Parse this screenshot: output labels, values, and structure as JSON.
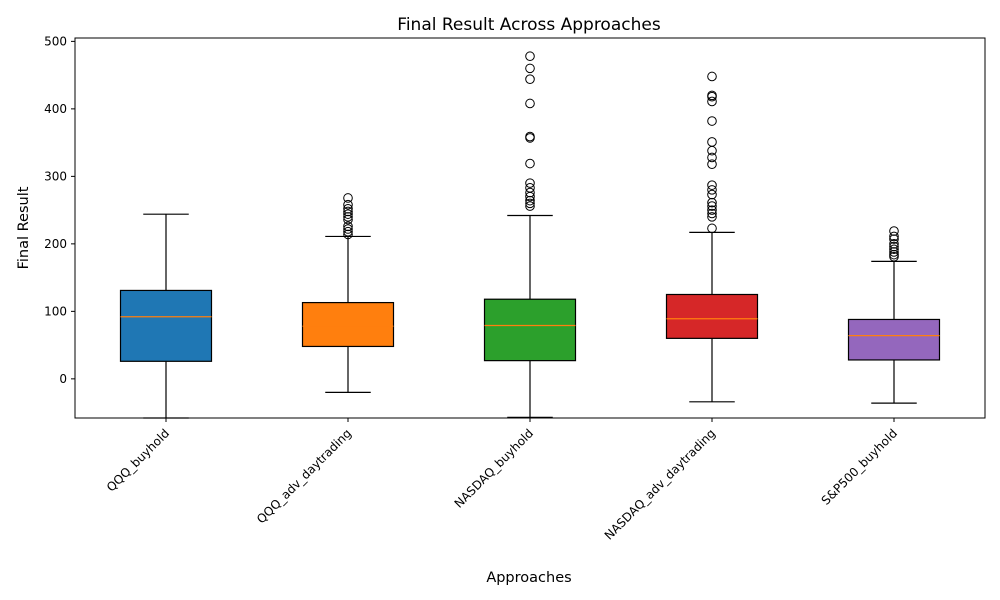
{
  "chart_data": {
    "type": "boxplot",
    "title": "Final Result Across Approaches",
    "xlabel": "Approaches",
    "ylabel": "Final Result",
    "ylim": [
      -58,
      505
    ],
    "yticks": [
      0,
      100,
      200,
      300,
      400,
      500
    ],
    "grid": false,
    "series": [
      {
        "name": "QQQ_buyhold",
        "color": "#1f77b4",
        "whisker_low": -58,
        "q1": 26,
        "median": 92,
        "q3": 131,
        "whisker_high": 244,
        "outliers": []
      },
      {
        "name": "QQQ_adv_daytrading",
        "color": "#ff7f0e",
        "whisker_low": -20,
        "q1": 48,
        "median": 78,
        "q3": 113,
        "whisker_high": 211,
        "outliers": [
          214,
          218,
          222,
          226,
          236,
          240,
          244,
          248,
          252,
          258,
          268
        ]
      },
      {
        "name": "NASDAQ_buyhold",
        "color": "#2ca02c",
        "whisker_low": -57,
        "q1": 27,
        "median": 79,
        "q3": 118,
        "whisker_high": 242,
        "outliers": [
          256,
          260,
          264,
          270,
          276,
          283,
          290,
          319,
          357,
          359,
          408,
          444,
          460,
          478
        ]
      },
      {
        "name": "NASDAQ_adv_daytrading",
        "color": "#d62728",
        "whisker_low": -34,
        "q1": 60,
        "median": 89,
        "q3": 125,
        "whisker_high": 217,
        "outliers": [
          223,
          240,
          245,
          250,
          256,
          261,
          273,
          280,
          287,
          318,
          328,
          338,
          351,
          382,
          411,
          418,
          420,
          448
        ]
      },
      {
        "name": "S&P500_buyhold",
        "color": "#9467bd",
        "whisker_low": -36,
        "q1": 28,
        "median": 64,
        "q3": 88,
        "whisker_high": 174,
        "outliers": [
          181,
          184,
          188,
          192,
          196,
          200,
          207,
          211,
          219
        ]
      }
    ]
  }
}
